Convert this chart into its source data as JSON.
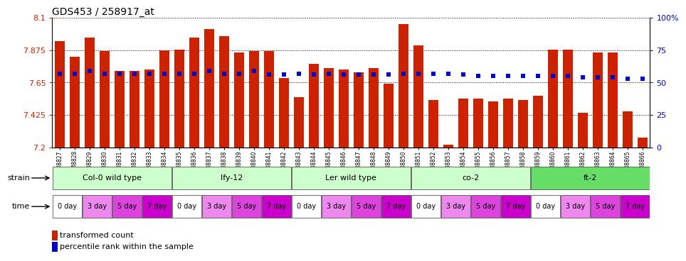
{
  "title": "GDS453 / 258917_at",
  "samples": [
    "GSM8827",
    "GSM8828",
    "GSM8829",
    "GSM8830",
    "GSM8831",
    "GSM8832",
    "GSM8833",
    "GSM8834",
    "GSM8835",
    "GSM8836",
    "GSM8837",
    "GSM8838",
    "GSM8839",
    "GSM8840",
    "GSM8841",
    "GSM8842",
    "GSM8843",
    "GSM8844",
    "GSM8845",
    "GSM8846",
    "GSM8847",
    "GSM8848",
    "GSM8849",
    "GSM8850",
    "GSM8851",
    "GSM8852",
    "GSM8853",
    "GSM8854",
    "GSM8855",
    "GSM8856",
    "GSM8857",
    "GSM8858",
    "GSM8859",
    "GSM8860",
    "GSM8861",
    "GSM8862",
    "GSM8863",
    "GSM8864",
    "GSM8865",
    "GSM8866"
  ],
  "bar_values": [
    7.935,
    7.83,
    7.96,
    7.87,
    7.73,
    7.73,
    7.74,
    7.875,
    7.88,
    7.96,
    8.02,
    7.97,
    7.86,
    7.87,
    7.87,
    7.68,
    7.55,
    7.78,
    7.75,
    7.74,
    7.72,
    7.75,
    7.64,
    8.055,
    7.91,
    7.53,
    7.22,
    7.54,
    7.54,
    7.52,
    7.54,
    7.53,
    7.56,
    7.88,
    7.88,
    7.44,
    7.86,
    7.86,
    7.45,
    7.27
  ],
  "percentile_values": [
    57,
    57,
    59,
    57,
    57,
    57,
    57,
    57,
    57,
    57,
    59,
    57,
    57,
    59,
    56,
    56,
    57,
    56,
    57,
    56,
    56,
    56,
    56,
    57,
    57,
    57,
    57,
    56,
    55,
    55,
    55,
    55,
    55,
    55,
    55,
    54,
    54,
    54,
    53,
    53
  ],
  "bar_color": "#cc2200",
  "percentile_color": "#0000cc",
  "ylim_left": [
    7.2,
    8.1
  ],
  "ylim_right": [
    0,
    100
  ],
  "yticks_left": [
    7.2,
    7.425,
    7.65,
    7.875,
    8.1
  ],
  "ytick_labels_left": [
    "7.2",
    "7.425",
    "7.65",
    "7.875",
    "8.1"
  ],
  "yticks_right": [
    0,
    25,
    50,
    75,
    100
  ],
  "ytick_labels_right": [
    "0",
    "25",
    "50",
    "75",
    "100%"
  ],
  "strain_groups": [
    {
      "label": "Col-0 wild type",
      "start": 0,
      "end": 8,
      "color": "#ccffcc"
    },
    {
      "label": "lfy-12",
      "start": 8,
      "end": 16,
      "color": "#ccffcc"
    },
    {
      "label": "Ler wild type",
      "start": 16,
      "end": 24,
      "color": "#ccffcc"
    },
    {
      "label": "co-2",
      "start": 24,
      "end": 32,
      "color": "#ccffcc"
    },
    {
      "label": "ft-2",
      "start": 32,
      "end": 40,
      "color": "#66dd66"
    }
  ],
  "time_groups": [
    {
      "label": "0 day",
      "color": "#ffffff"
    },
    {
      "label": "3 day",
      "color": "#ee88ee"
    },
    {
      "label": "5 day",
      "color": "#dd44dd"
    },
    {
      "label": "7 day",
      "color": "#cc00cc"
    }
  ],
  "left_label_color": "#cc2200",
  "right_label_color": "#0000cc",
  "background_color": "#ffffff"
}
